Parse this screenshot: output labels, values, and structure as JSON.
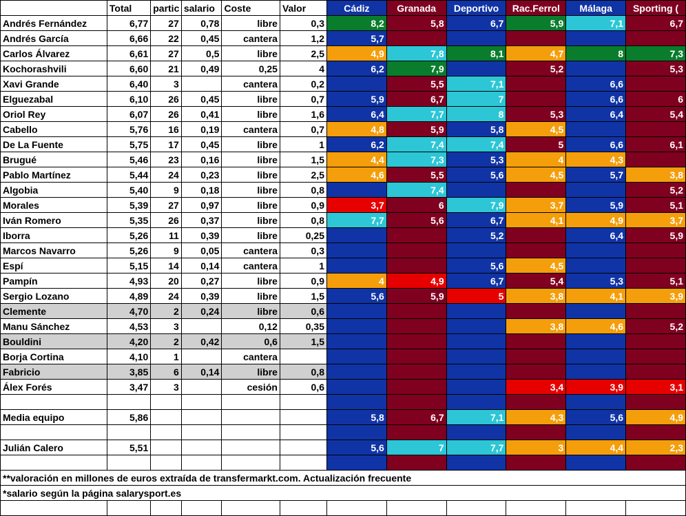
{
  "colors": {
    "blue": "#1034a6",
    "maroon": "#800020",
    "green": "#0a7d2c",
    "orange": "#f59e0b",
    "cyan": "#2cc6d6",
    "red": "#e60000",
    "grey": "#d0d0d0",
    "white": "#ffffff",
    "black": "#000000"
  },
  "headers": {
    "name": "",
    "total": "Total",
    "parti": "partic",
    "salario": "salario",
    "coste": "Coste",
    "valor": "Valor",
    "teams": [
      "Cádiz",
      "Granada",
      "Deportivo",
      "Rac.Ferrol",
      "Málaga",
      "Sporting ("
    ]
  },
  "header_team_bg": [
    "blue",
    "maroon",
    "blue",
    "maroon",
    "blue",
    "maroon"
  ],
  "rows": [
    {
      "name": "Andrés Fernández",
      "total": "6,77",
      "parti": "27",
      "salario": "0,78",
      "coste": "libre",
      "valor": "0,3",
      "cells": [
        [
          "8,2",
          "green"
        ],
        [
          "5,8",
          "maroon"
        ],
        [
          "6,7",
          "blue"
        ],
        [
          "5,9",
          "green"
        ],
        [
          "7,1",
          "cyan"
        ],
        [
          "6,7",
          "maroon"
        ]
      ]
    },
    {
      "name": "Andrés García",
      "total": "6,66",
      "parti": "22",
      "salario": "0,45",
      "coste": "cantera",
      "valor": "1,2",
      "cells": [
        [
          "5,7",
          "blue"
        ],
        [
          "",
          "maroon"
        ],
        [
          "",
          "blue"
        ],
        [
          "",
          "maroon"
        ],
        [
          "",
          "blue"
        ],
        [
          "",
          "maroon"
        ]
      ]
    },
    {
      "name": "Carlos Álvarez",
      "total": "6,61",
      "parti": "27",
      "salario": "0,5",
      "coste": "libre",
      "valor": "2,5",
      "cells": [
        [
          "4,9",
          "orange"
        ],
        [
          "7,8",
          "cyan"
        ],
        [
          "8,1",
          "green"
        ],
        [
          "4,7",
          "orange"
        ],
        [
          "8",
          "green"
        ],
        [
          "7,3",
          "green"
        ]
      ]
    },
    {
      "name": "Kochorashvili",
      "total": "6,60",
      "parti": "21",
      "salario": "0,49",
      "coste": "0,25",
      "valor": "4",
      "cells": [
        [
          "6,2",
          "blue"
        ],
        [
          "7,9",
          "green"
        ],
        [
          "",
          "blue"
        ],
        [
          "5,2",
          "maroon"
        ],
        [
          "",
          "blue"
        ],
        [
          "5,3",
          "maroon"
        ]
      ]
    },
    {
      "name": "Xavi Grande",
      "total": "6,40",
      "parti": "3",
      "salario": "",
      "coste": "cantera",
      "valor": "0,2",
      "cells": [
        [
          "",
          "blue"
        ],
        [
          "5,5",
          "maroon"
        ],
        [
          "7,1",
          "cyan"
        ],
        [
          "",
          "maroon"
        ],
        [
          "6,6",
          "blue"
        ],
        [
          "",
          "maroon"
        ]
      ]
    },
    {
      "name": "Elguezabal",
      "total": "6,10",
      "parti": "26",
      "salario": "0,45",
      "coste": "libre",
      "valor": "0,7",
      "cells": [
        [
          "5,9",
          "blue"
        ],
        [
          "6,7",
          "maroon"
        ],
        [
          "7",
          "cyan"
        ],
        [
          "",
          "maroon"
        ],
        [
          "6,6",
          "blue"
        ],
        [
          "6",
          "maroon"
        ]
      ]
    },
    {
      "name": "Oriol Rey",
      "total": "6,07",
      "parti": "26",
      "salario": "0,41",
      "coste": "libre",
      "valor": "1,6",
      "cells": [
        [
          "6,4",
          "blue"
        ],
        [
          "7,7",
          "cyan"
        ],
        [
          "8",
          "cyan"
        ],
        [
          "5,3",
          "maroon"
        ],
        [
          "6,4",
          "blue"
        ],
        [
          "5,4",
          "maroon"
        ]
      ]
    },
    {
      "name": "Cabello",
      "total": "5,76",
      "parti": "16",
      "salario": "0,19",
      "coste": "cantera",
      "valor": "0,7",
      "cells": [
        [
          "4,8",
          "orange"
        ],
        [
          "5,9",
          "maroon"
        ],
        [
          "5,8",
          "blue"
        ],
        [
          "4,5",
          "orange"
        ],
        [
          "",
          "blue"
        ],
        [
          "",
          "maroon"
        ]
      ]
    },
    {
      "name": "De La Fuente",
      "total": "5,75",
      "parti": "17",
      "salario": "0,45",
      "coste": "libre",
      "valor": "1",
      "cells": [
        [
          "6,2",
          "blue"
        ],
        [
          "7,4",
          "cyan"
        ],
        [
          "7,4",
          "cyan"
        ],
        [
          "5",
          "maroon"
        ],
        [
          "6,6",
          "blue"
        ],
        [
          "6,1",
          "maroon"
        ]
      ]
    },
    {
      "name": "Brugué",
      "total": "5,46",
      "parti": "23",
      "salario": "0,16",
      "coste": "libre",
      "valor": "1,5",
      "cells": [
        [
          "4,4",
          "orange"
        ],
        [
          "7,3",
          "cyan"
        ],
        [
          "5,3",
          "blue"
        ],
        [
          "4",
          "orange"
        ],
        [
          "4,3",
          "orange"
        ],
        [
          "",
          "maroon"
        ]
      ]
    },
    {
      "name": "Pablo Martínez",
      "total": "5,44",
      "parti": "24",
      "salario": "0,23",
      "coste": "libre",
      "valor": "2,5",
      "cells": [
        [
          "4,6",
          "orange"
        ],
        [
          "5,5",
          "maroon"
        ],
        [
          "5,6",
          "blue"
        ],
        [
          "4,5",
          "orange"
        ],
        [
          "5,7",
          "blue"
        ],
        [
          "3,8",
          "orange"
        ]
      ]
    },
    {
      "name": "Algobia",
      "total": "5,40",
      "parti": "9",
      "salario": "0,18",
      "coste": "libre",
      "valor": "0,8",
      "cells": [
        [
          "",
          "blue"
        ],
        [
          "7,4",
          "cyan"
        ],
        [
          "",
          "blue"
        ],
        [
          "",
          "maroon"
        ],
        [
          "",
          "blue"
        ],
        [
          "5,2",
          "maroon"
        ]
      ]
    },
    {
      "name": "Morales",
      "total": "5,39",
      "parti": "27",
      "salario": "0,97",
      "coste": "libre",
      "valor": "0,9",
      "cells": [
        [
          "3,7",
          "red"
        ],
        [
          "6",
          "maroon"
        ],
        [
          "7,9",
          "cyan"
        ],
        [
          "3,7",
          "orange"
        ],
        [
          "5,9",
          "blue"
        ],
        [
          "5,1",
          "maroon"
        ]
      ]
    },
    {
      "name": "Iván Romero",
      "total": "5,35",
      "parti": "26",
      "salario": "0,37",
      "coste": "libre",
      "valor": "0,8",
      "cells": [
        [
          "7,7",
          "cyan"
        ],
        [
          "5,6",
          "maroon"
        ],
        [
          "6,7",
          "blue"
        ],
        [
          "4,1",
          "orange"
        ],
        [
          "4,9",
          "orange"
        ],
        [
          "3,7",
          "orange"
        ]
      ]
    },
    {
      "name": "Iborra",
      "total": "5,26",
      "parti": "11",
      "salario": "0,39",
      "coste": "libre",
      "valor": "0,25",
      "cells": [
        [
          "",
          "blue"
        ],
        [
          "",
          "maroon"
        ],
        [
          "5,2",
          "blue"
        ],
        [
          "",
          "maroon"
        ],
        [
          "6,4",
          "blue"
        ],
        [
          "5,9",
          "maroon"
        ]
      ]
    },
    {
      "name": "Marcos Navarro",
      "total": "5,26",
      "parti": "9",
      "salario": "0,05",
      "coste": "cantera",
      "valor": "0,3",
      "cells": [
        [
          "",
          "blue"
        ],
        [
          "",
          "maroon"
        ],
        [
          "",
          "blue"
        ],
        [
          "",
          "maroon"
        ],
        [
          "",
          "blue"
        ],
        [
          "",
          "maroon"
        ]
      ]
    },
    {
      "name": "Espí",
      "total": "5,15",
      "parti": "14",
      "salario": "0,14",
      "coste": "cantera",
      "valor": "1",
      "cells": [
        [
          "",
          "blue"
        ],
        [
          "",
          "maroon"
        ],
        [
          "5,6",
          "blue"
        ],
        [
          "4,5",
          "orange"
        ],
        [
          "",
          "blue"
        ],
        [
          "",
          "maroon"
        ]
      ]
    },
    {
      "name": "Pampín",
      "total": "4,93",
      "parti": "20",
      "salario": "0,27",
      "coste": "libre",
      "valor": "0,9",
      "cells": [
        [
          "4",
          "orange"
        ],
        [
          "4,9",
          "red"
        ],
        [
          "6,7",
          "blue"
        ],
        [
          "5,4",
          "maroon"
        ],
        [
          "5,3",
          "blue"
        ],
        [
          "5,1",
          "maroon"
        ]
      ]
    },
    {
      "name": "Sergio Lozano",
      "total": "4,89",
      "parti": "24",
      "salario": "0,39",
      "coste": "libre",
      "valor": "1,5",
      "cells": [
        [
          "5,6",
          "blue"
        ],
        [
          "5,9",
          "maroon"
        ],
        [
          "5",
          "red"
        ],
        [
          "3,8",
          "orange"
        ],
        [
          "4,1",
          "orange"
        ],
        [
          "3,9",
          "orange"
        ]
      ]
    },
    {
      "name": "Clemente",
      "total": "4,70",
      "parti": "2",
      "salario": "0,24",
      "coste": "libre",
      "valor": "0,6",
      "hl": true,
      "cells": [
        [
          "",
          "blue"
        ],
        [
          "",
          "maroon"
        ],
        [
          "",
          "blue"
        ],
        [
          "",
          "maroon"
        ],
        [
          "",
          "blue"
        ],
        [
          "",
          "maroon"
        ]
      ]
    },
    {
      "name": "Manu Sánchez",
      "total": "4,53",
      "parti": "3",
      "salario": "",
      "coste": "0,12",
      "valor": "0,35",
      "cells": [
        [
          "",
          "blue"
        ],
        [
          "",
          "maroon"
        ],
        [
          "",
          "blue"
        ],
        [
          "3,8",
          "orange"
        ],
        [
          "4,6",
          "orange"
        ],
        [
          "5,2",
          "maroon"
        ]
      ]
    },
    {
      "name": "Bouldini",
      "total": "4,20",
      "parti": "2",
      "salario": "0,42",
      "coste": "0,6",
      "valor": "1,5",
      "hl": true,
      "cells": [
        [
          "",
          "blue"
        ],
        [
          "",
          "maroon"
        ],
        [
          "",
          "blue"
        ],
        [
          "",
          "maroon"
        ],
        [
          "",
          "blue"
        ],
        [
          "",
          "maroon"
        ]
      ]
    },
    {
      "name": "Borja Cortina",
      "total": "4,10",
      "parti": "1",
      "salario": "",
      "coste": "cantera",
      "valor": "",
      "cells": [
        [
          "",
          "blue"
        ],
        [
          "",
          "maroon"
        ],
        [
          "",
          "blue"
        ],
        [
          "",
          "maroon"
        ],
        [
          "",
          "blue"
        ],
        [
          "",
          "maroon"
        ]
      ]
    },
    {
      "name": "Fabricio",
      "total": "3,85",
      "parti": "6",
      "salario": "0,14",
      "coste": "libre",
      "valor": "0,8",
      "hl": true,
      "cells": [
        [
          "",
          "blue"
        ],
        [
          "",
          "maroon"
        ],
        [
          "",
          "blue"
        ],
        [
          "",
          "maroon"
        ],
        [
          "",
          "blue"
        ],
        [
          "",
          "maroon"
        ]
      ]
    },
    {
      "name": "Álex Forés",
      "total": "3,47",
      "parti": "3",
      "salario": "",
      "coste": "cesión",
      "valor": "0,6",
      "cells": [
        [
          "",
          "blue"
        ],
        [
          "",
          "maroon"
        ],
        [
          "",
          "blue"
        ],
        [
          "3,4",
          "red"
        ],
        [
          "3,9",
          "red"
        ],
        [
          "3,1",
          "red"
        ]
      ]
    },
    {
      "name": "",
      "total": "",
      "parti": "",
      "salario": "",
      "coste": "",
      "valor": "",
      "cells": [
        [
          "",
          "blue"
        ],
        [
          "",
          "maroon"
        ],
        [
          "",
          "blue"
        ],
        [
          "",
          "maroon"
        ],
        [
          "",
          "blue"
        ],
        [
          "",
          "maroon"
        ]
      ]
    },
    {
      "name": "Media equipo",
      "total": "5,86",
      "parti": "",
      "salario": "",
      "coste": "",
      "valor": "",
      "cells": [
        [
          "5,8",
          "blue"
        ],
        [
          "6,7",
          "maroon"
        ],
        [
          "7,1",
          "cyan"
        ],
        [
          "4,3",
          "orange"
        ],
        [
          "5,6",
          "blue"
        ],
        [
          "4,9",
          "orange"
        ]
      ]
    },
    {
      "name": "",
      "total": "",
      "parti": "",
      "salario": "",
      "coste": "",
      "valor": "",
      "cells": [
        [
          "",
          "blue"
        ],
        [
          "",
          "maroon"
        ],
        [
          "",
          "blue"
        ],
        [
          "",
          "maroon"
        ],
        [
          "",
          "blue"
        ],
        [
          "",
          "maroon"
        ]
      ]
    },
    {
      "name": "Julián Calero",
      "total": "5,51",
      "parti": "",
      "salario": "",
      "coste": "",
      "valor": "",
      "cells": [
        [
          "5,6",
          "blue"
        ],
        [
          "7",
          "cyan"
        ],
        [
          "7,7",
          "cyan"
        ],
        [
          "3",
          "orange"
        ],
        [
          "4,4",
          "orange"
        ],
        [
          "2,3",
          "orange"
        ]
      ]
    },
    {
      "name": "",
      "total": "",
      "parti": "",
      "salario": "",
      "coste": "",
      "valor": "",
      "cells": [
        [
          "",
          "blue"
        ],
        [
          "",
          "maroon"
        ],
        [
          "",
          "blue"
        ],
        [
          "",
          "maroon"
        ],
        [
          "",
          "blue"
        ],
        [
          "",
          "maroon"
        ]
      ]
    }
  ],
  "footnotes": [
    "**valoración en millones de euros extraída de transfermarkt.com. Actualización frecuente",
    "*salario según la página salarysport.es"
  ]
}
